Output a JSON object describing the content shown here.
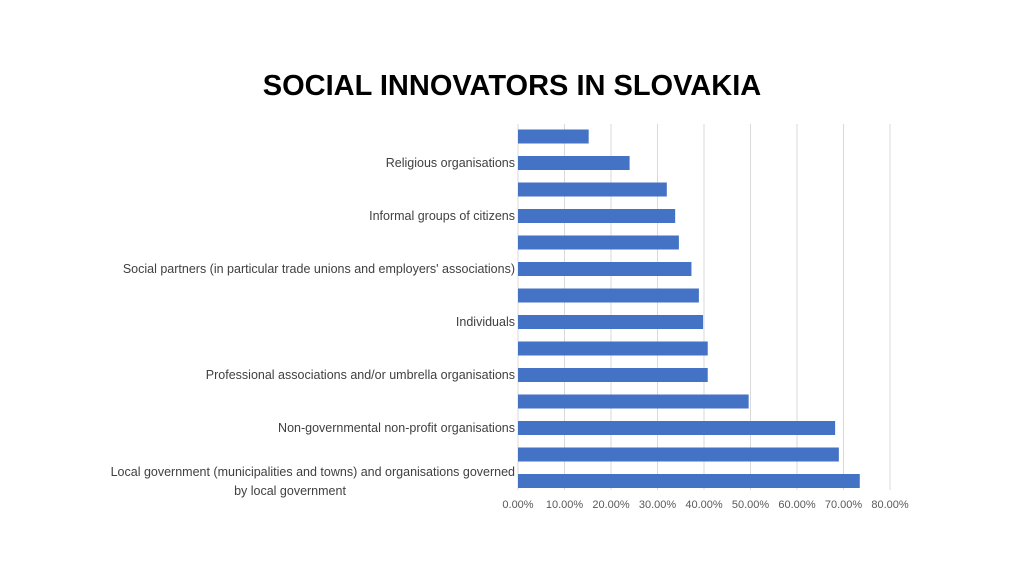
{
  "chart_data": {
    "type": "bar",
    "orientation": "horizontal",
    "title": "SOCIAL INNOVATORS IN SLOVAKIA",
    "categories": [
      "Local government (municipalities and towns) and organisations governed by local government",
      "",
      "Non-governmental non-profit organisations",
      "",
      "Professional associations and/or umbrella organisations",
      "",
      "Individuals",
      "",
      "Social partners (in particular trade unions and employers' associations)",
      "",
      "Informal groups of citizens",
      "",
      "Religious organisations",
      ""
    ],
    "category_label_lines": [
      [
        "Local government (municipalities and towns) and organisations governed",
        "by local government"
      ],
      [],
      [
        "Non-governmental non-profit organisations"
      ],
      [],
      [
        "Professional associations and/or umbrella organisations"
      ],
      [],
      [
        "Individuals"
      ],
      [],
      [
        "Social partners (in particular trade unions and employers' associations)"
      ],
      [],
      [
        "Informal groups of citizens"
      ],
      [],
      [
        "Religious organisations"
      ],
      []
    ],
    "values": [
      73.5,
      69,
      68.2,
      49.6,
      40.8,
      40.8,
      39.8,
      38.9,
      37.3,
      34.6,
      33.8,
      32,
      24,
      15.2
    ],
    "xlim": [
      0,
      80
    ],
    "x_ticks": [
      "0.00%",
      "10.00%",
      "20.00%",
      "30.00%",
      "40.00%",
      "50.00%",
      "60.00%",
      "70.00%",
      "80.00%"
    ],
    "x_tick_values": [
      0,
      10,
      20,
      30,
      40,
      50,
      60,
      70,
      80
    ],
    "grid": true,
    "bar_color": "#4472C4",
    "grid_color": "#D9D9D9"
  }
}
